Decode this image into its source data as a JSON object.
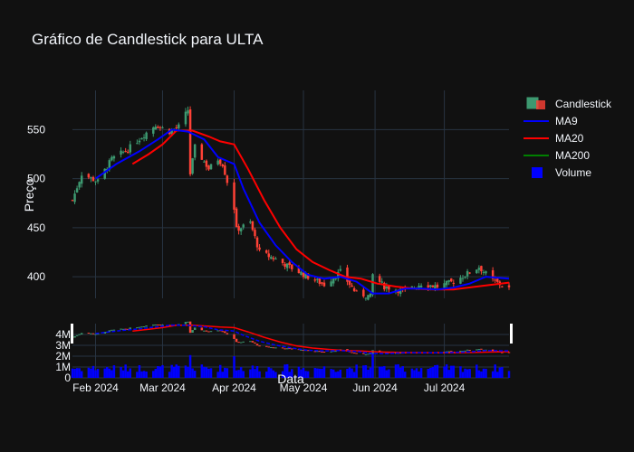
{
  "title": "Gráfico de Candlestick para ULTA",
  "colors": {
    "bg": "#111111",
    "grid": "#283442",
    "up": "#3d9970",
    "down": "#ff4136",
    "ma9": "#0000ff",
    "ma20": "#ff0000",
    "ma200": "#008000",
    "volume": "#0000ff"
  },
  "legend": [
    {
      "label": "Candlestick",
      "kind": "candle"
    },
    {
      "label": "MA9",
      "kind": "line",
      "color": "#0000ff"
    },
    {
      "label": "MA20",
      "kind": "line",
      "color": "#ff0000"
    },
    {
      "label": "MA200",
      "kind": "line",
      "color": "#008000"
    },
    {
      "label": "Volume",
      "kind": "box",
      "color": "#0000ff"
    }
  ],
  "chart_data": {
    "type": "candlestick",
    "title": "Gráfico de Candlestick para ULTA",
    "xlabel": "Data",
    "ylabel": "Preço",
    "x_range": [
      "2024-01-22",
      "2024-07-29"
    ],
    "y_range": [
      378,
      590
    ],
    "y_ticks": [
      400,
      450,
      500,
      550
    ],
    "y_tick_labels": [
      "400",
      "450",
      "500",
      "550"
    ],
    "x_ticks": [
      "2024-02-01",
      "2024-03-01",
      "2024-04-01",
      "2024-05-01",
      "2024-06-01",
      "2024-07-01"
    ],
    "x_tick_labels": [
      "Feb 2024",
      "Mar 2024",
      "Apr 2024",
      "May 2024",
      "Jun 2024",
      "Jul 2024"
    ],
    "volume_ticks": [
      0,
      1000000,
      2000000,
      3000000,
      4000000
    ],
    "volume_tick_labels": [
      "0",
      "1M",
      "2M",
      "3M",
      "4M"
    ],
    "volume_range": [
      0,
      5000000
    ],
    "grid": true,
    "legend_position": "top-right",
    "close_anchors": [
      [
        "2024-01-22",
        478
      ],
      [
        "2024-01-26",
        505
      ],
      [
        "2024-02-02",
        497
      ],
      [
        "2024-02-08",
        520
      ],
      [
        "2024-02-15",
        530
      ],
      [
        "2024-02-22",
        545
      ],
      [
        "2024-02-27",
        555
      ],
      [
        "2024-03-04",
        548
      ],
      [
        "2024-03-08",
        553
      ],
      [
        "2024-03-12",
        570
      ],
      [
        "2024-03-13",
        505
      ],
      [
        "2024-03-15",
        532
      ],
      [
        "2024-03-21",
        510
      ],
      [
        "2024-03-25",
        520
      ],
      [
        "2024-03-27",
        515
      ],
      [
        "2024-04-01",
        470
      ],
      [
        "2024-04-02",
        448
      ],
      [
        "2024-04-08",
        455
      ],
      [
        "2024-04-12",
        425
      ],
      [
        "2024-04-19",
        418
      ],
      [
        "2024-04-25",
        410
      ],
      [
        "2024-05-03",
        400
      ],
      [
        "2024-05-10",
        392
      ],
      [
        "2024-05-17",
        405
      ],
      [
        "2024-05-24",
        383
      ],
      [
        "2024-05-30",
        380
      ],
      [
        "2024-05-31",
        402
      ],
      [
        "2024-06-05",
        390
      ],
      [
        "2024-06-14",
        385
      ],
      [
        "2024-06-21",
        393
      ],
      [
        "2024-06-28",
        390
      ],
      [
        "2024-07-05",
        395
      ],
      [
        "2024-07-10",
        402
      ],
      [
        "2024-07-16",
        410
      ],
      [
        "2024-07-22",
        396
      ],
      [
        "2024-07-29",
        388
      ]
    ],
    "ma9": [
      [
        "2024-02-01",
        500
      ],
      [
        "2024-02-10",
        515
      ],
      [
        "2024-02-20",
        528
      ],
      [
        "2024-02-28",
        540
      ],
      [
        "2024-03-05",
        550
      ],
      [
        "2024-03-12",
        548
      ],
      [
        "2024-03-19",
        540
      ],
      [
        "2024-03-25",
        522
      ],
      [
        "2024-04-01",
        515
      ],
      [
        "2024-04-05",
        490
      ],
      [
        "2024-04-12",
        455
      ],
      [
        "2024-04-19",
        432
      ],
      [
        "2024-04-26",
        415
      ],
      [
        "2024-05-03",
        402
      ],
      [
        "2024-05-10",
        398
      ],
      [
        "2024-05-17",
        400
      ],
      [
        "2024-05-24",
        395
      ],
      [
        "2024-05-31",
        383
      ],
      [
        "2024-06-07",
        383
      ],
      [
        "2024-06-14",
        388
      ],
      [
        "2024-06-21",
        388
      ],
      [
        "2024-06-28",
        387
      ],
      [
        "2024-07-05",
        389
      ],
      [
        "2024-07-12",
        393
      ],
      [
        "2024-07-19",
        400
      ],
      [
        "2024-07-29",
        398
      ]
    ],
    "ma20": [
      [
        "2024-02-17",
        515
      ],
      [
        "2024-02-24",
        525
      ],
      [
        "2024-03-01",
        535
      ],
      [
        "2024-03-07",
        549
      ],
      [
        "2024-03-14",
        549
      ],
      [
        "2024-03-21",
        543
      ],
      [
        "2024-03-26",
        538
      ],
      [
        "2024-04-01",
        535
      ],
      [
        "2024-04-07",
        510
      ],
      [
        "2024-04-14",
        478
      ],
      [
        "2024-04-21",
        450
      ],
      [
        "2024-04-28",
        428
      ],
      [
        "2024-05-05",
        415
      ],
      [
        "2024-05-12",
        407
      ],
      [
        "2024-05-19",
        400
      ],
      [
        "2024-05-26",
        398
      ],
      [
        "2024-06-02",
        393
      ],
      [
        "2024-06-10",
        390
      ],
      [
        "2024-06-18",
        388
      ],
      [
        "2024-06-26",
        387
      ],
      [
        "2024-07-05",
        387
      ],
      [
        "2024-07-15",
        390
      ],
      [
        "2024-07-29",
        394
      ]
    ],
    "volume_base": 900000,
    "volume_spikes": [
      [
        "2024-03-13",
        2100000
      ],
      [
        "2024-04-01",
        2000000
      ],
      [
        "2024-05-31",
        2300000
      ]
    ]
  }
}
